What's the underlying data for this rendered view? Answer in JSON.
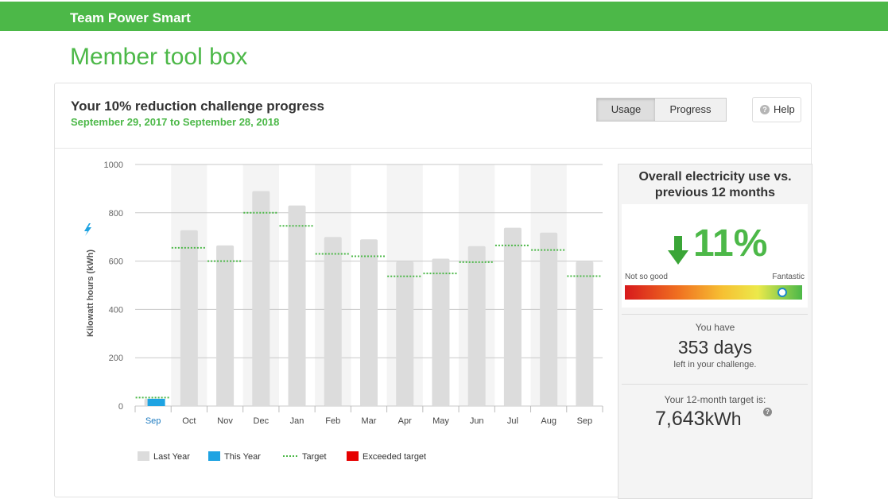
{
  "header": {
    "brand": "Team Power Smart"
  },
  "page": {
    "title": "Member tool box"
  },
  "card": {
    "title": "Your 10% reduction challenge progress",
    "subtitle": "September 29, 2017 to September 28, 2018",
    "toggle": {
      "usage": "Usage",
      "progress": "Progress",
      "selected": "Usage"
    },
    "help_label": "Help"
  },
  "chart_data": {
    "type": "bar",
    "ylabel": "Kilowatt hours (kWh)",
    "ylim": [
      0,
      1000
    ],
    "yticks": [
      0,
      200,
      400,
      600,
      800,
      1000
    ],
    "categories": [
      "Sep",
      "Oct",
      "Nov",
      "Dec",
      "Jan",
      "Feb",
      "Mar",
      "Apr",
      "May",
      "Jun",
      "Jul",
      "Aug",
      "Sep"
    ],
    "series": [
      {
        "name": "Last Year",
        "color": "#dcdcdc",
        "values": [
          30,
          728,
          665,
          890,
          830,
          700,
          690,
          598,
          610,
          662,
          738,
          718,
          598
        ]
      },
      {
        "name": "This Year",
        "color": "#1ea3e2",
        "values": [
          30,
          null,
          null,
          null,
          null,
          null,
          null,
          null,
          null,
          null,
          null,
          null,
          null
        ]
      },
      {
        "name": "Target",
        "color": "#4cb848",
        "values": [
          35,
          655,
          600,
          800,
          746,
          630,
          620,
          537,
          549,
          596,
          665,
          646,
          538
        ]
      }
    ],
    "legend": [
      {
        "label": "Last Year",
        "color": "#dcdcdc",
        "kind": "swatch"
      },
      {
        "label": "This Year",
        "color": "#1ea3e2",
        "kind": "swatch"
      },
      {
        "label": "Target",
        "color": "#4cb848",
        "kind": "dotted"
      },
      {
        "label": "Exceeded target",
        "color": "#e60000",
        "kind": "swatch"
      }
    ],
    "legend_position": "bottom-left",
    "grid": true,
    "current_month_index": 0
  },
  "summary": {
    "title": "Overall electricity use vs. previous 12 months",
    "change_percent": "11",
    "percent_sign": "%",
    "direction": "down",
    "gauge_left": "Not so good",
    "gauge_right": "Fantastic",
    "gauge_level": 0.89,
    "days_prefix": "You have",
    "days_value": "353 days",
    "days_suffix": "left in your challenge.",
    "target_label": "Your 12-month target is:",
    "target_value": "7,643",
    "target_unit": "kWh"
  }
}
